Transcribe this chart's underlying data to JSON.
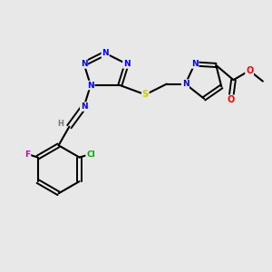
{
  "background_color": "#e8e8e8",
  "bond_color": "#000000",
  "atom_colors": {
    "N": "#0000ff",
    "S": "#cccc00",
    "O": "#ff0000",
    "F": "#cc00cc",
    "Cl": "#00aa00",
    "C": "#000000",
    "H": "#777777"
  }
}
